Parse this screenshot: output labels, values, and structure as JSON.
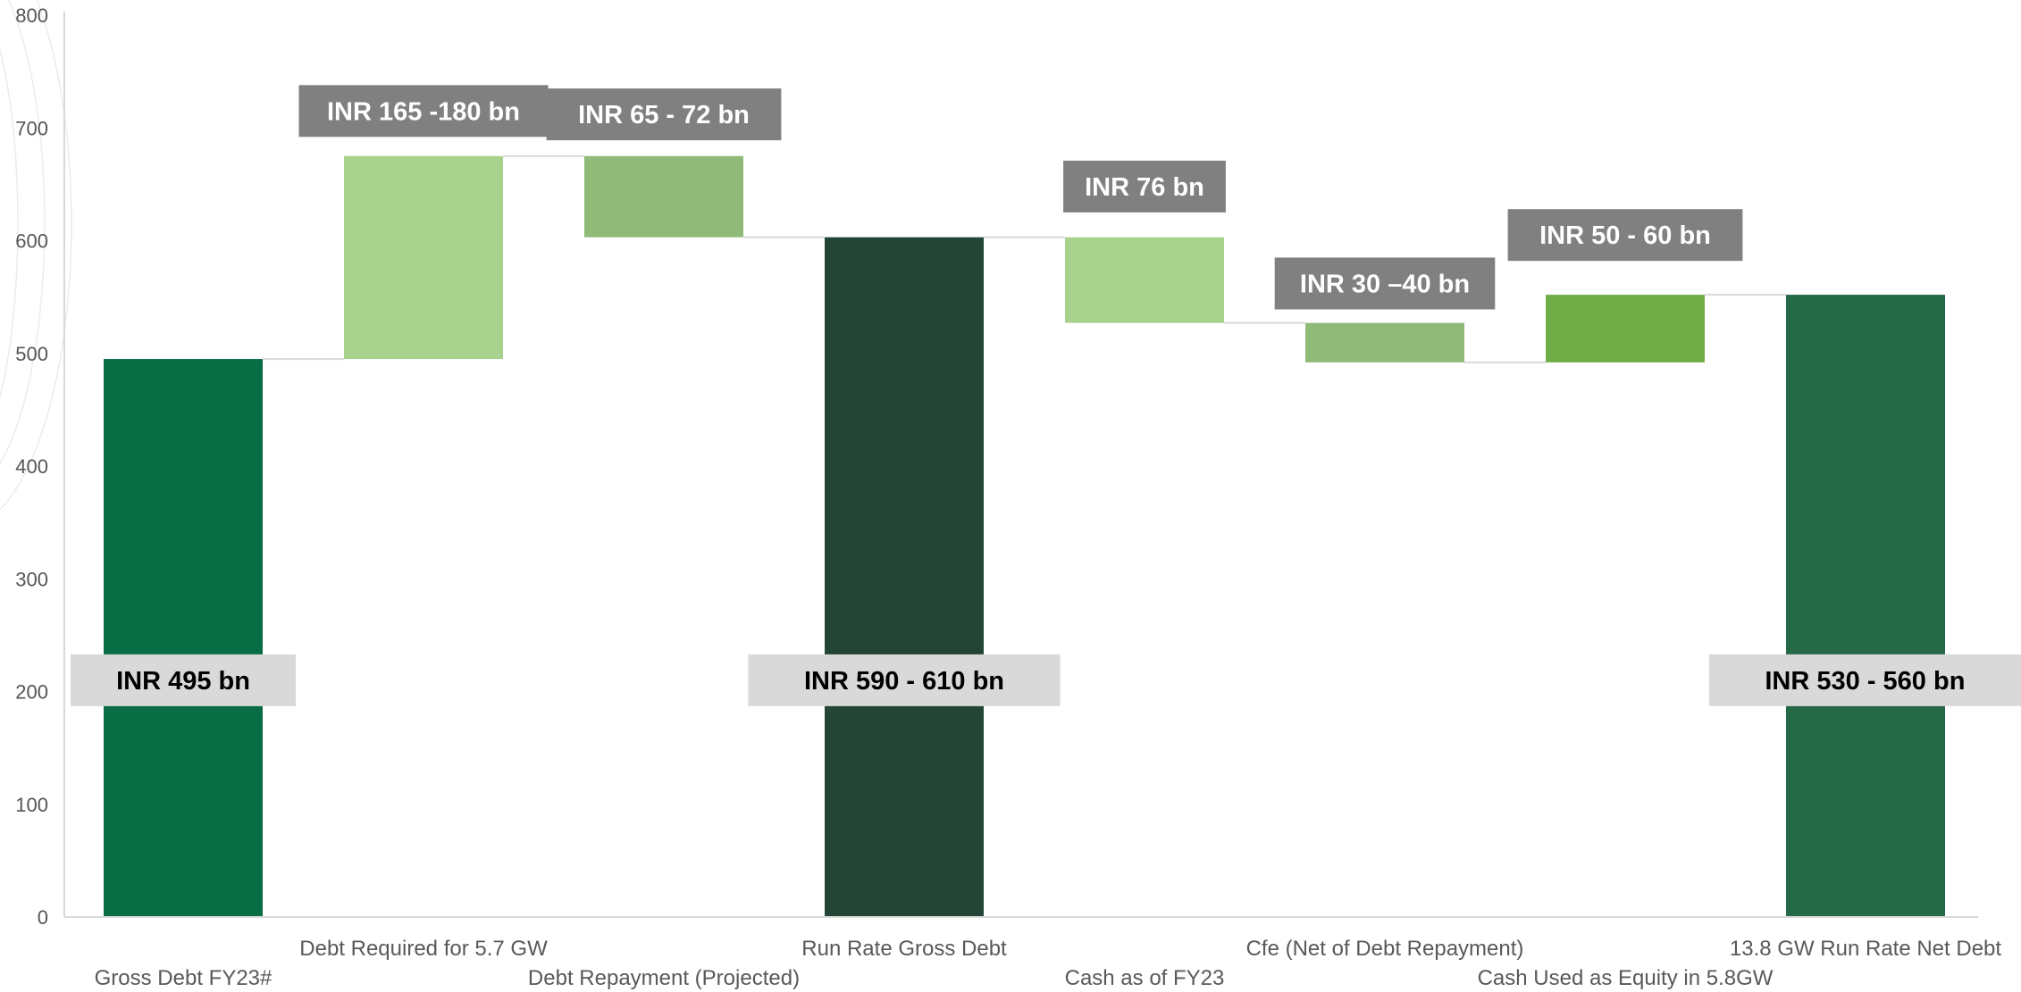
{
  "chart_data": {
    "type": "bar",
    "subtype": "waterfall",
    "title": "",
    "xlabel": "",
    "ylabel": "",
    "ylim": [
      0,
      800
    ],
    "yticks": [
      0,
      100,
      200,
      300,
      400,
      500,
      600,
      700,
      800
    ],
    "grid": false,
    "legend": "none",
    "categories": [
      "Gross Debt FY23#",
      "Debt Required for 5.7 GW",
      "Debt Repayment (Projected)",
      "Run Rate Gross Debt",
      "Cash as of FY23",
      "Cfe (Net of Debt Repayment)",
      "Cash Used as Equity in 5.8GW",
      "13.8 GW Run Rate Net Debt"
    ],
    "bars": [
      {
        "base": 0,
        "top": 495,
        "kind": "total",
        "color": "#086C44"
      },
      {
        "base": 495,
        "top": 675,
        "kind": "increase",
        "color": "#A9D18E"
      },
      {
        "base": 603,
        "top": 675,
        "kind": "decrease",
        "color": "#8FBA78"
      },
      {
        "base": 0,
        "top": 603,
        "kind": "total",
        "color": "#224535"
      },
      {
        "base": 527,
        "top": 603,
        "kind": "decrease",
        "color": "#A9D18E"
      },
      {
        "base": 492,
        "top": 527,
        "kind": "decrease",
        "color": "#8FBA78"
      },
      {
        "base": 492,
        "top": 552,
        "kind": "increase",
        "color": "#70AD47"
      },
      {
        "base": 0,
        "top": 552,
        "kind": "total",
        "color": "#266947"
      }
    ],
    "data_labels": [
      {
        "bar": 0,
        "text": "INR 495 bn",
        "style": "light",
        "at": 210
      },
      {
        "bar": 1,
        "text": "INR 165 -180 bn",
        "style": "dark",
        "at": 715
      },
      {
        "bar": 2,
        "text": "INR 65 - 72 bn",
        "style": "dark",
        "at": 712
      },
      {
        "bar": 3,
        "text": "INR 590 - 610 bn",
        "style": "light",
        "at": 210
      },
      {
        "bar": 4,
        "text": "INR 76 bn",
        "style": "dark",
        "at": 648
      },
      {
        "bar": 5,
        "text": "INR 30 –40 bn",
        "style": "dark",
        "at": 562
      },
      {
        "bar": 6,
        "text": "INR 50 - 60 bn",
        "style": "dark",
        "at": 605
      },
      {
        "bar": 7,
        "text": "INR 530 - 560 bn",
        "style": "light",
        "at": 210
      }
    ]
  },
  "colors": {
    "callout_dark_bg": "#808080",
    "callout_dark_text": "#ffffff",
    "callout_light_bg": "#D9D9D9",
    "callout_light_text": "#000000",
    "axis": "#D9D9D9",
    "connector": "#D9D9D9"
  }
}
